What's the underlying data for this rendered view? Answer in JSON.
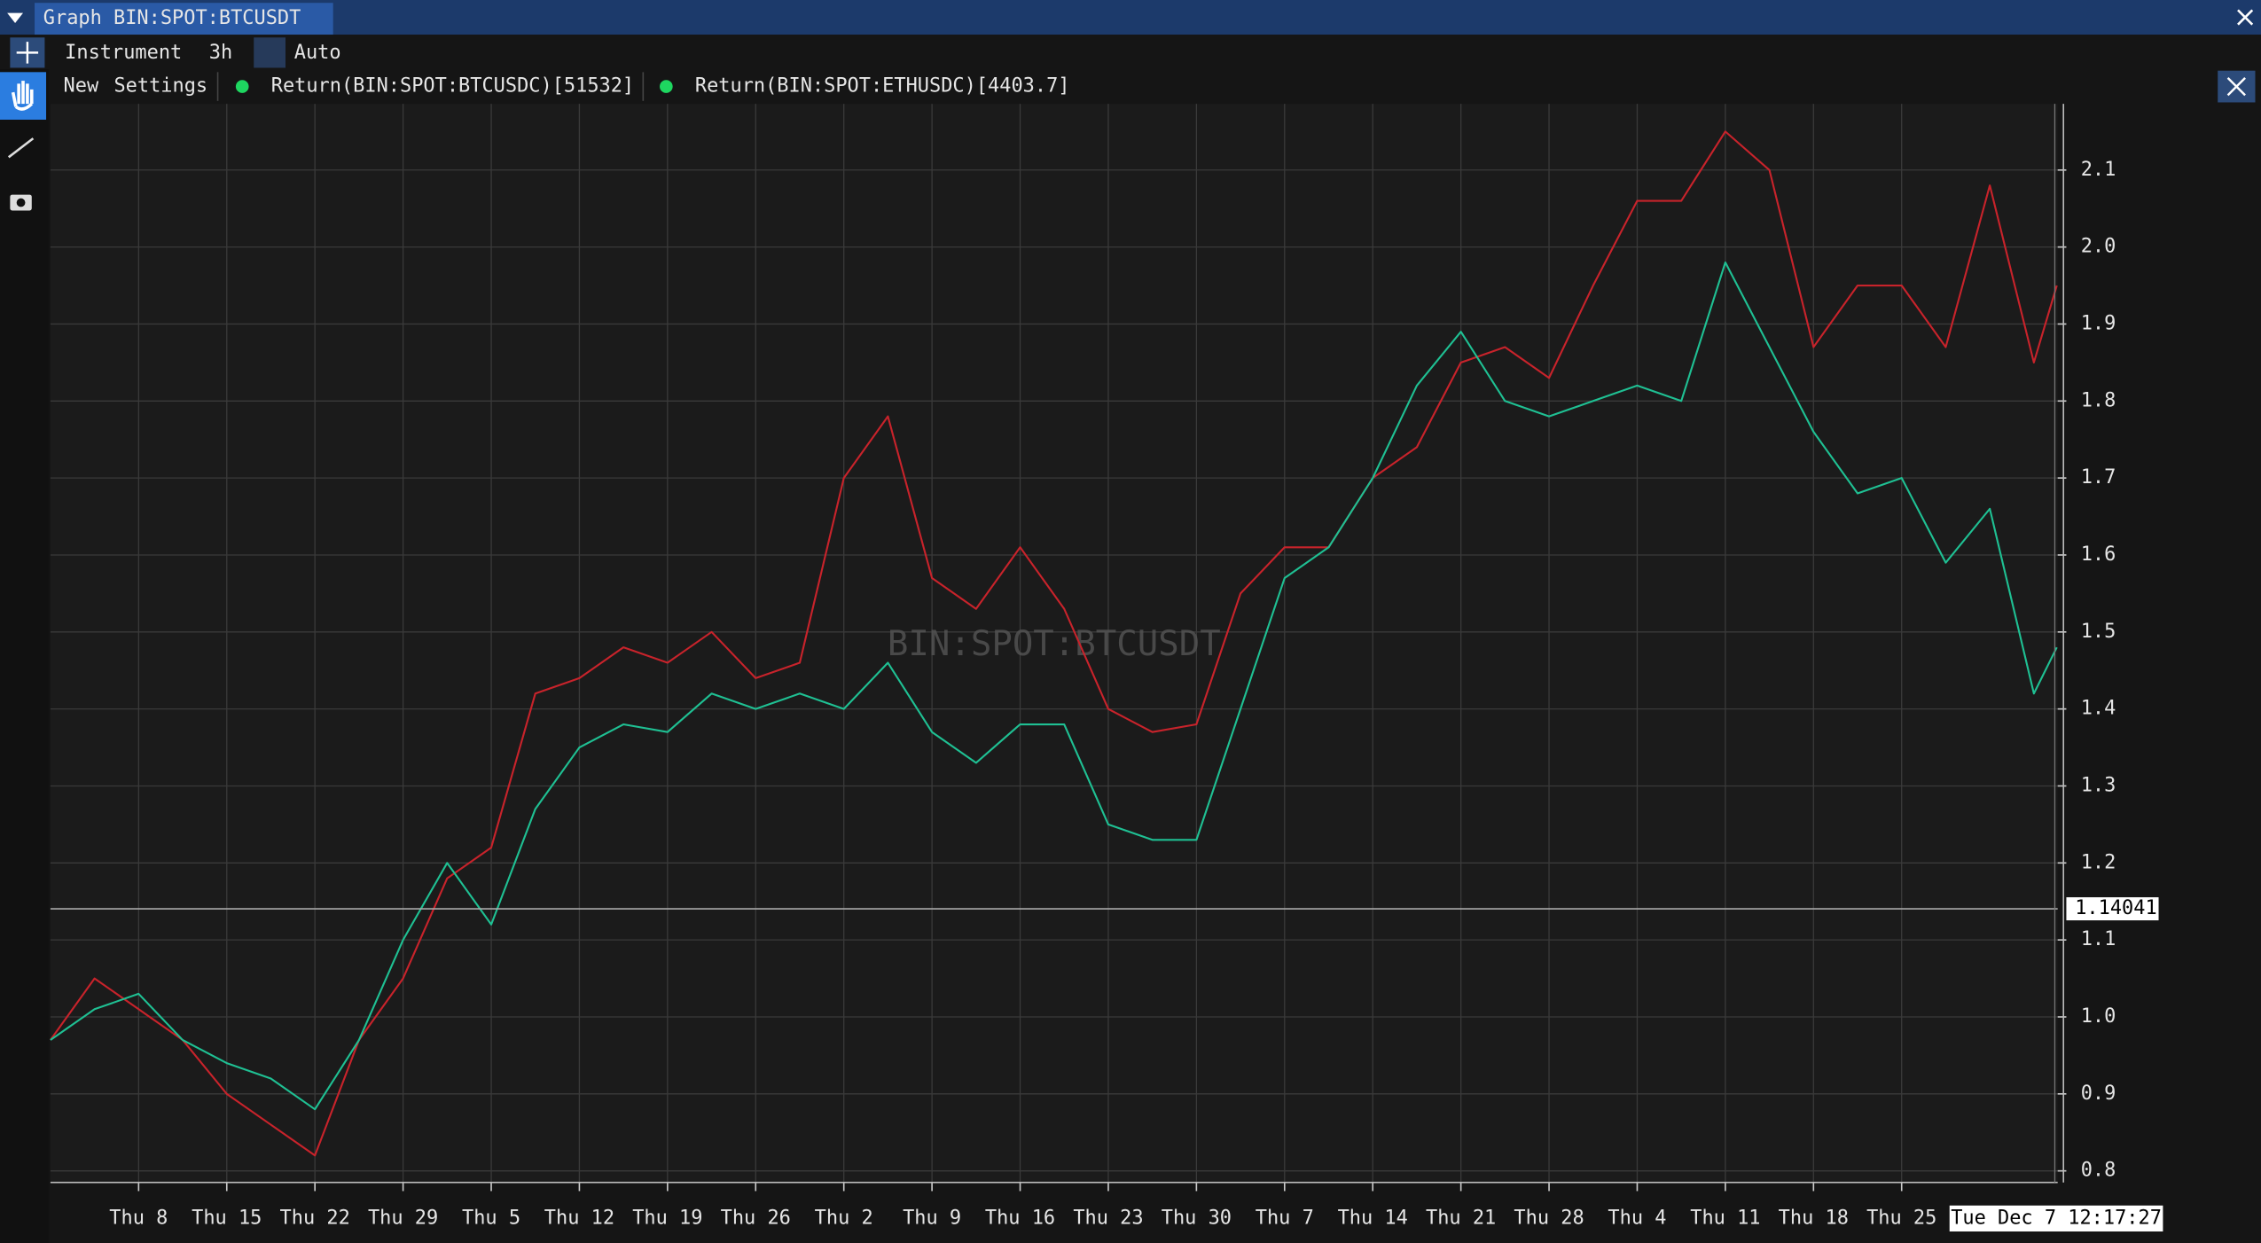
{
  "window": {
    "tab": "Graph BIN:SPOT:BTCUSDT"
  },
  "toolbar": {
    "items": [
      "Instrument",
      "3h",
      "Auto"
    ]
  },
  "legend_bar": {
    "items": [
      "New",
      "Settings"
    ]
  },
  "chart_data": {
    "type": "line",
    "watermark": "BIN:SPOT:BTCUSDT",
    "grid": true,
    "x": [
      0,
      0.5,
      1,
      1.5,
      2,
      2.5,
      3,
      3.5,
      4,
      4.5,
      5,
      5.5,
      6,
      6.5,
      7,
      7.5,
      8,
      8.5,
      9,
      9.5,
      10,
      10.5,
      11,
      11.5,
      12,
      12.5,
      13,
      13.5,
      14,
      14.5,
      15,
      15.5,
      16,
      16.5,
      17,
      17.5,
      18,
      18.5,
      19,
      19.5,
      20,
      20.5,
      21,
      21.5,
      22,
      22.5,
      22.76
    ],
    "xlim": [
      0,
      22.77
    ],
    "xticks": [
      {
        "value": 1,
        "label": "Thu 8"
      },
      {
        "value": 2,
        "label": "Thu 15"
      },
      {
        "value": 3,
        "label": "Thu 22"
      },
      {
        "value": 4,
        "label": "Thu 29"
      },
      {
        "value": 5,
        "label": "Thu 5"
      },
      {
        "value": 6,
        "label": "Thu 12"
      },
      {
        "value": 7,
        "label": "Thu 19"
      },
      {
        "value": 8,
        "label": "Thu 26"
      },
      {
        "value": 9,
        "label": "Thu 2"
      },
      {
        "value": 10,
        "label": "Thu 9"
      },
      {
        "value": 11,
        "label": "Thu 16"
      },
      {
        "value": 12,
        "label": "Thu 23"
      },
      {
        "value": 13,
        "label": "Thu 30"
      },
      {
        "value": 14,
        "label": "Thu 7"
      },
      {
        "value": 15,
        "label": "Thu 14"
      },
      {
        "value": 16,
        "label": "Thu 21"
      },
      {
        "value": 17,
        "label": "Thu 28"
      },
      {
        "value": 18,
        "label": "Thu 4"
      },
      {
        "value": 19,
        "label": "Thu 11"
      },
      {
        "value": 20,
        "label": "Thu 18"
      },
      {
        "value": 21,
        "label": "Thu 25"
      }
    ],
    "ylim": [
      0.785,
      2.186
    ],
    "yticks": [
      0.8,
      0.9,
      {
        "value": 1,
        "label": "1.0"
      },
      1.1,
      1.2,
      1.3,
      1.4,
      1.5,
      1.6,
      1.7,
      1.8,
      1.9,
      {
        "value": 2,
        "label": "2.0"
      },
      2.1
    ],
    "series": [
      {
        "name": "Return(BIN:SPOT:BTCUSDC)[51532]",
        "color": "#c8232b",
        "values": [
          0.97,
          1.05,
          1.01,
          0.97,
          0.9,
          0.86,
          0.82,
          0.97,
          1.05,
          1.18,
          1.22,
          1.42,
          1.44,
          1.48,
          1.46,
          1.5,
          1.44,
          1.46,
          1.7,
          1.78,
          1.57,
          1.53,
          1.61,
          1.53,
          1.4,
          1.37,
          1.38,
          1.55,
          1.61,
          1.61,
          1.7,
          1.74,
          1.85,
          1.87,
          1.83,
          1.95,
          2.06,
          2.06,
          2.15,
          2.1,
          1.87,
          1.95,
          1.95,
          1.87,
          2.08,
          1.85,
          1.95
        ]
      },
      {
        "name": "Return(BIN:SPOT:ETHUSDC)[4403.7]",
        "color": "#1fc093",
        "values": [
          0.97,
          1.01,
          1.03,
          0.97,
          0.94,
          0.92,
          0.88,
          0.97,
          1.1,
          1.2,
          1.12,
          1.27,
          1.35,
          1.38,
          1.37,
          1.42,
          1.4,
          1.42,
          1.4,
          1.46,
          1.37,
          1.33,
          1.38,
          1.38,
          1.25,
          1.23,
          1.23,
          1.4,
          1.57,
          1.61,
          1.7,
          1.82,
          1.89,
          1.8,
          1.78,
          1.8,
          1.82,
          1.8,
          1.98,
          1.87,
          1.76,
          1.68,
          1.7,
          1.59,
          1.66,
          1.42,
          1.48
        ]
      }
    ],
    "crosshair": {
      "y": 1.14041,
      "x_label": "Tue Dec 7 12:17:27"
    }
  }
}
